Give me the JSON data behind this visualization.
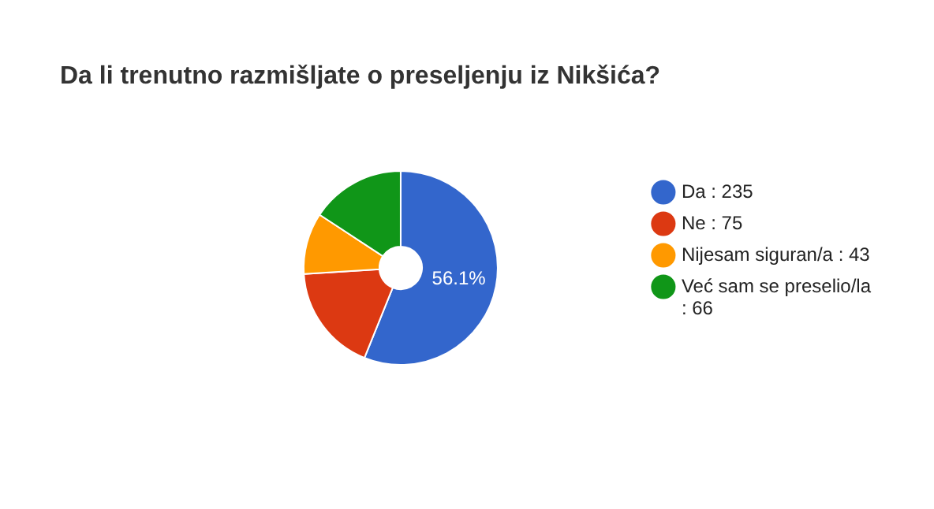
{
  "chart_data": {
    "type": "donut",
    "title": "Da li trenutno razmišljate o preseljenju iz Nikšića?",
    "categories": [
      "Da : 235",
      "Ne : 75",
      "Nijesam siguran/a : 43",
      "Već sam se preselio/la : 66"
    ],
    "values": [
      56.09,
      17.9,
      10.26,
      15.75
    ],
    "colors": [
      "#3366cc",
      "#dc3912",
      "#ff9900",
      "#109618"
    ],
    "value_labels": [
      "56.1%",
      null,
      null,
      null
    ],
    "legend": "right"
  }
}
